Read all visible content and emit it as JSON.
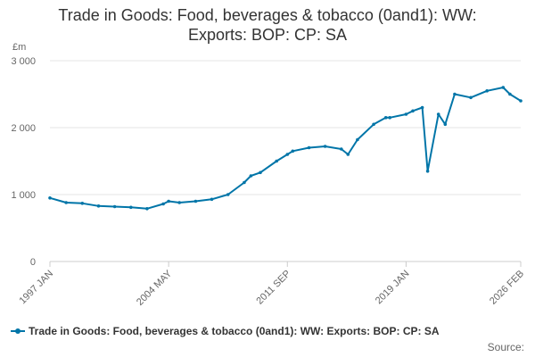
{
  "chart_data": {
    "type": "line",
    "title_line1": "Trade in Goods: Food, beverages & tobacco (0and1): WW:",
    "title_line2": "Exports: BOP: CP: SA",
    "ylabel": "£m",
    "ylim": [
      0,
      3000
    ],
    "yticks": [
      0,
      1000,
      2000,
      3000
    ],
    "ytick_labels": [
      "0",
      "1 000",
      "2 000",
      "3 000"
    ],
    "xtick_labels": [
      "1997 JAN",
      "2004 MAY",
      "2011 SEP",
      "2019 JAN",
      "2026 FEB"
    ],
    "grid": true,
    "legend_position": "bottom",
    "source_label": "Source:",
    "series": [
      {
        "name": "Trade in Goods: Food, beverages & tobacco (0and1): WW: Exports: BOP: CP: SA",
        "color": "#0075a8",
        "x": [
          "1997 JAN",
          "1998 JAN",
          "1999 JAN",
          "2000 JAN",
          "2001 JAN",
          "2002 JAN",
          "2003 JAN",
          "2004 JAN",
          "2004 MAY",
          "2005 JAN",
          "2006 JAN",
          "2007 JAN",
          "2008 JAN",
          "2009 JAN",
          "2009 JUN",
          "2010 JAN",
          "2011 JAN",
          "2011 SEP",
          "2012 JAN",
          "2013 JAN",
          "2014 JAN",
          "2015 JAN",
          "2015 JUN",
          "2016 JAN",
          "2017 JAN",
          "2017 OCT",
          "2018 JAN",
          "2019 JAN",
          "2019 JUN",
          "2020 JAN",
          "2020 MAY",
          "2021 JAN",
          "2021 JUN",
          "2022 JAN",
          "2023 JAN",
          "2024 JAN",
          "2025 JAN",
          "2025 JUN",
          "2026 FEB"
        ],
        "values": [
          950,
          880,
          870,
          830,
          820,
          810,
          790,
          860,
          900,
          880,
          900,
          930,
          1000,
          1180,
          1280,
          1330,
          1500,
          1600,
          1650,
          1700,
          1720,
          1680,
          1600,
          1820,
          2050,
          2150,
          2150,
          2200,
          2250,
          2300,
          1350,
          2200,
          2050,
          2500,
          2450,
          2550,
          2600,
          2500,
          2400
        ]
      }
    ]
  }
}
